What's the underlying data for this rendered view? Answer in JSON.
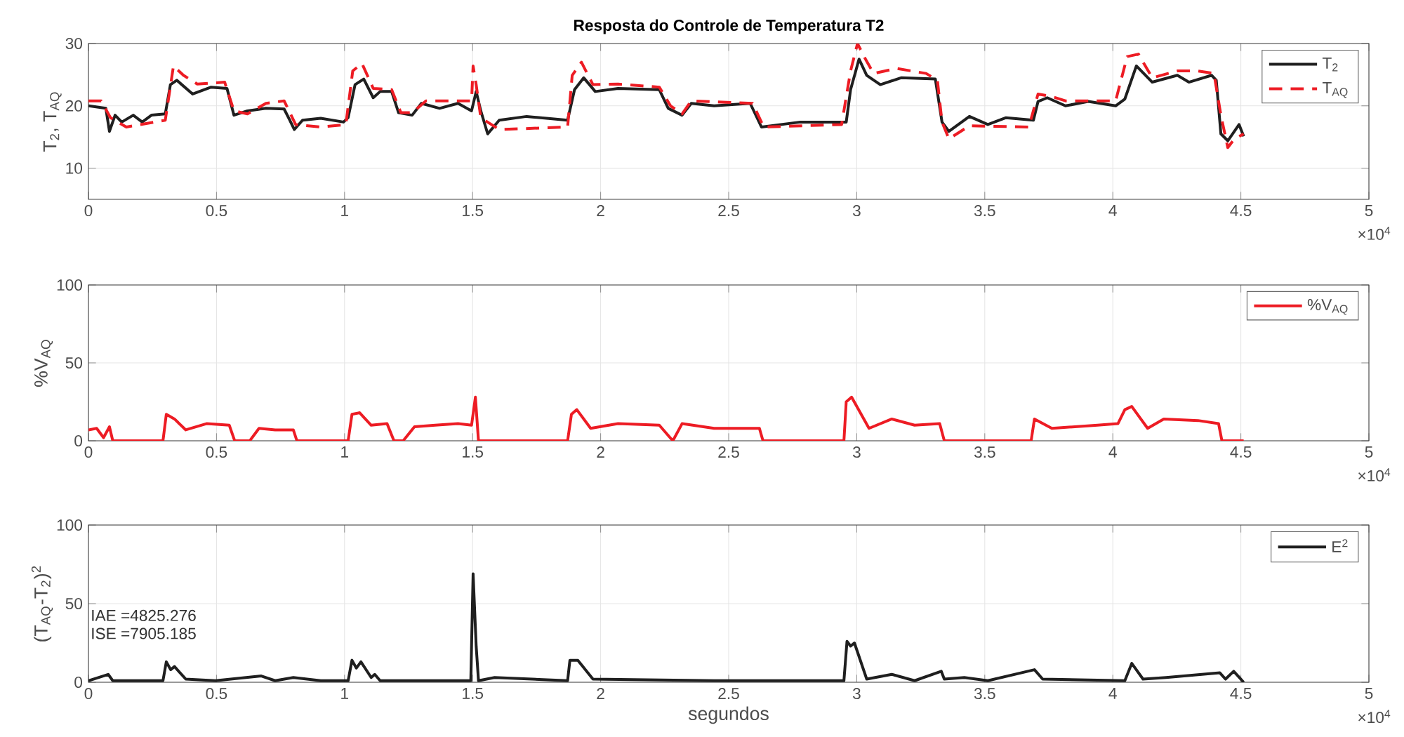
{
  "chart_data": [
    {
      "type": "line",
      "title": "Resposta do Controle de Temperatura T2",
      "ylabel": "T$_{2}$, T$_{AQ}$",
      "xlim": [
        0,
        5
      ],
      "ylim": [
        5,
        30
      ],
      "xticks": [
        0,
        0.5,
        1,
        1.5,
        2,
        2.5,
        3,
        3.5,
        4,
        4.5,
        5
      ],
      "yticks": [
        10,
        20,
        30
      ],
      "grid": true,
      "legend": "top right",
      "annotations": [
        "×10$^{4}$"
      ],
      "series": [
        {
          "name": "T$_{2}$",
          "color": "#1f1f1f",
          "line_style": "solid",
          "x": [
            0,
            0.068,
            0.082,
            0.104,
            0.13,
            0.175,
            0.21,
            0.246,
            0.3,
            0.32,
            0.345,
            0.407,
            0.479,
            0.541,
            0.568,
            0.621,
            0.693,
            0.764,
            0.786,
            0.804,
            0.836,
            0.907,
            0.996,
            1.014,
            1.041,
            1.075,
            1.112,
            1.139,
            1.184,
            1.211,
            1.264,
            1.3,
            1.371,
            1.443,
            1.496,
            1.514,
            1.532,
            1.559,
            1.604,
            1.711,
            1.871,
            1.898,
            1.934,
            1.979,
            2.068,
            2.229,
            2.264,
            2.318,
            2.354,
            2.443,
            2.584,
            2.628,
            2.78,
            2.959,
            2.976,
            3.009,
            3.039,
            3.092,
            3.173,
            3.307,
            3.333,
            3.36,
            3.44,
            3.512,
            3.583,
            3.69,
            3.708,
            3.744,
            3.815,
            3.904,
            4.011,
            4.047,
            4.092,
            4.154,
            4.252,
            4.297,
            4.386,
            4.404,
            4.422,
            4.449,
            4.493,
            4.511
          ],
          "values": [
            20,
            19.6,
            15.9,
            18.5,
            17.4,
            18.5,
            17.4,
            18.5,
            18.7,
            23.4,
            24.1,
            21.9,
            23,
            22.8,
            18.5,
            19.2,
            19.6,
            19.5,
            17.7,
            16.2,
            17.7,
            18,
            17.4,
            18.1,
            23.4,
            24.3,
            21.3,
            22.3,
            22.3,
            18.9,
            18.5,
            20.4,
            19.6,
            20.4,
            19.2,
            22.3,
            19.2,
            15.5,
            17.7,
            18.3,
            17.7,
            22.6,
            24.5,
            22.3,
            22.8,
            22.6,
            19.6,
            18.5,
            20.4,
            20,
            20.4,
            16.6,
            17.4,
            17.4,
            22.6,
            27.5,
            24.9,
            23.4,
            24.5,
            24.3,
            17.4,
            15.9,
            18.3,
            17,
            18.1,
            17.7,
            20.7,
            21.3,
            20,
            20.7,
            20,
            21.1,
            26.4,
            23.8,
            24.9,
            23.8,
            24.9,
            24.1,
            15.5,
            14.4,
            17,
            15.1
          ]
        },
        {
          "name": "T$_{AQ}$",
          "color": "#ed1c24",
          "line_style": "dashed",
          "x": [
            0,
            0.05,
            0.086,
            0.148,
            0.3,
            0.332,
            0.371,
            0.425,
            0.532,
            0.568,
            0.621,
            0.693,
            0.764,
            0.809,
            0.907,
            1.005,
            1.032,
            1.068,
            1.112,
            1.184,
            1.22,
            1.264,
            1.318,
            1.496,
            1.502,
            1.514,
            1.532,
            1.604,
            1.871,
            1.889,
            1.925,
            1.97,
            2.068,
            2.229,
            2.273,
            2.318,
            2.354,
            2.593,
            2.637,
            2.941,
            2.976,
            3.003,
            3.03,
            3.066,
            3.155,
            3.271,
            3.315,
            3.333,
            3.36,
            3.44,
            3.672,
            3.708,
            3.762,
            3.815,
            4.011,
            4.056,
            4.1,
            4.154,
            4.252,
            4.33,
            4.395,
            4.422,
            4.449,
            4.475,
            4.511
          ],
          "values": [
            20.8,
            20.8,
            18.1,
            16.6,
            17.7,
            26.4,
            24.9,
            23.5,
            23.8,
            19.2,
            18.7,
            20.4,
            20.8,
            17,
            16.6,
            17,
            25.6,
            26.8,
            22.8,
            22.6,
            18.9,
            18.9,
            20.8,
            20.8,
            26.4,
            23.4,
            18.1,
            16.2,
            16.6,
            24.9,
            27,
            23.4,
            23.5,
            23,
            20,
            18.7,
            20.8,
            20.4,
            16.6,
            17,
            25.6,
            30,
            27.8,
            25.2,
            26,
            25.2,
            24.1,
            17.4,
            14.7,
            16.8,
            16.6,
            21.9,
            21.5,
            20.8,
            20.8,
            27.9,
            28.3,
            24.5,
            25.6,
            25.6,
            25.2,
            18.5,
            13.3,
            14.7,
            15.5
          ]
        }
      ]
    },
    {
      "type": "line",
      "ylabel": "%V$_{AQ}$",
      "xlim": [
        0,
        5
      ],
      "ylim": [
        0,
        100
      ],
      "xticks": [
        0,
        0.5,
        1,
        1.5,
        2,
        2.5,
        3,
        3.5,
        4,
        4.5,
        5
      ],
      "yticks": [
        0,
        50,
        100
      ],
      "grid": true,
      "legend": "top right",
      "annotations": [
        "×10$^{4}$"
      ],
      "series": [
        {
          "name": "%V$_{AQ}$",
          "color": "#ed1c24",
          "line_style": "solid",
          "x": [
            0,
            0.032,
            0.059,
            0.082,
            0.095,
            0.291,
            0.304,
            0.336,
            0.38,
            0.461,
            0.55,
            0.571,
            0.63,
            0.666,
            0.729,
            0.8,
            0.814,
            1.014,
            1.029,
            1.059,
            1.104,
            1.166,
            1.193,
            1.229,
            1.273,
            1.354,
            1.443,
            1.496,
            1.511,
            1.523,
            1.871,
            1.886,
            1.907,
            1.961,
            2.068,
            2.229,
            2.282,
            2.318,
            2.443,
            2.62,
            2.634,
            2.95,
            2.959,
            2.98,
            3.048,
            3.137,
            3.226,
            3.324,
            3.342,
            3.681,
            3.694,
            3.762,
            3.94,
            4.02,
            4.047,
            4.074,
            4.136,
            4.199,
            4.333,
            4.413,
            4.426,
            4.511
          ],
          "values": [
            7,
            8,
            2,
            9,
            0,
            0,
            17,
            14,
            7,
            11,
            10,
            0,
            0,
            8,
            7,
            7,
            0,
            0,
            17,
            18,
            10,
            11,
            0,
            0,
            9,
            10,
            11,
            10,
            28,
            0,
            0,
            17,
            20,
            8,
            11,
            10,
            0,
            11,
            8,
            8,
            0,
            0,
            25,
            28,
            8,
            14,
            10,
            11,
            0,
            0,
            14,
            8,
            10,
            11,
            20,
            22,
            8,
            14,
            13,
            11,
            0,
            0
          ]
        }
      ]
    },
    {
      "type": "line",
      "xlabel": "segundos",
      "ylabel": "(T$_{AQ}$-T$_{2}$)$^{2}$",
      "xlim": [
        0,
        5
      ],
      "ylim": [
        0,
        100
      ],
      "xticks": [
        0,
        0.5,
        1,
        1.5,
        2,
        2.5,
        3,
        3.5,
        4,
        4.5,
        5
      ],
      "yticks": [
        0,
        50,
        100
      ],
      "grid": true,
      "legend": "top right",
      "annotations": [
        "IAE =4825.276",
        "ISE =7905.185",
        "×10$^{4}$"
      ],
      "series": [
        {
          "name": "E$^{2}$",
          "color": "#1f1f1f",
          "line_style": "solid",
          "x": [
            0,
            0.077,
            0.095,
            0.291,
            0.304,
            0.321,
            0.336,
            0.38,
            0.496,
            0.675,
            0.729,
            0.8,
            0.907,
            1.014,
            1.029,
            1.046,
            1.064,
            1.104,
            1.118,
            1.139,
            1.493,
            1.502,
            1.514,
            1.523,
            1.586,
            1.871,
            1.88,
            1.911,
            1.97,
            2.443,
            2.95,
            2.962,
            2.976,
            2.991,
            3.039,
            3.137,
            3.226,
            3.33,
            3.342,
            3.42,
            3.512,
            3.694,
            3.726,
            4.047,
            4.074,
            4.118,
            4.208,
            4.418,
            4.44,
            4.472,
            4.511
          ],
          "values": [
            1,
            5,
            1,
            1,
            13,
            8,
            10,
            2,
            1,
            4,
            1,
            3,
            1,
            1,
            14,
            9,
            13,
            3,
            5,
            1,
            1,
            69,
            23,
            1,
            3,
            1,
            14,
            14,
            2,
            1,
            1,
            26,
            23,
            25,
            2,
            5,
            1,
            7,
            2,
            3,
            1,
            8,
            2,
            1,
            12,
            2,
            3,
            6,
            2,
            7,
            0
          ]
        }
      ]
    }
  ]
}
